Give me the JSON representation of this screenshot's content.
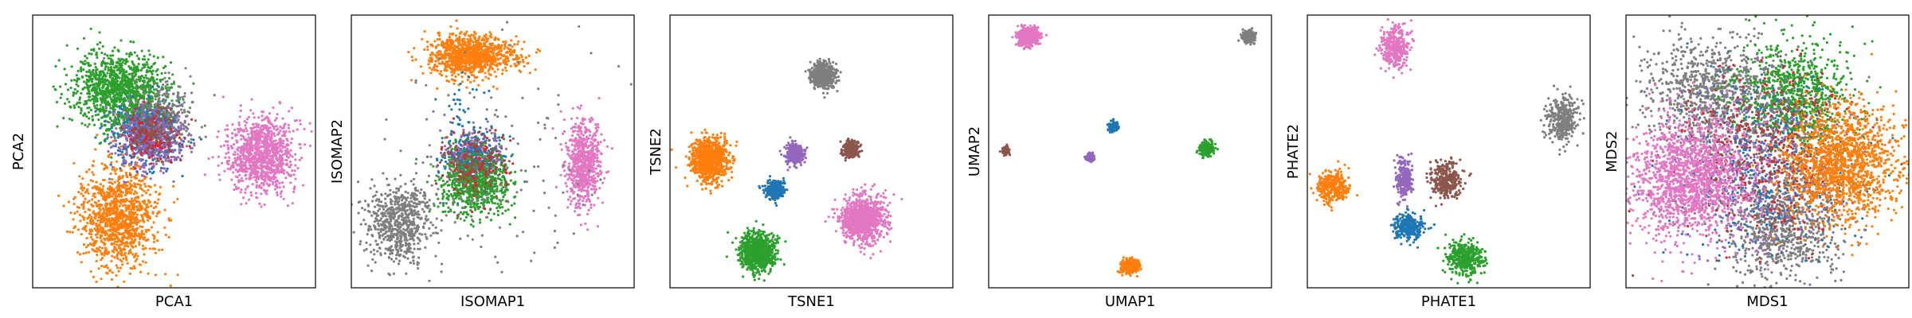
{
  "colors": {
    "blue": "#1f77b4",
    "orange": "#ff7f0e",
    "green": "#2ca02c",
    "red": "#d62728",
    "purple": "#9467bd",
    "brown": "#8c564b",
    "pink": "#e377c2",
    "gray": "#7f7f7f"
  },
  "chart_data": [
    {
      "type": "scatter",
      "xlabel": "PCA1",
      "ylabel": "PCA2",
      "xlim": [
        0,
        100
      ],
      "ylim": [
        0,
        100
      ],
      "grid": false,
      "ticks": false,
      "clusters": [
        {
          "color": "gray",
          "cx": 43,
          "cy": 62,
          "sx": 6,
          "sy": 7,
          "n": 700
        },
        {
          "color": "green",
          "cx": 30,
          "cy": 73,
          "sx": 8,
          "sy": 7,
          "n": 1100
        },
        {
          "color": "blue",
          "cx": 40,
          "cy": 56,
          "sx": 6,
          "sy": 6,
          "n": 400
        },
        {
          "color": "purple",
          "cx": 42,
          "cy": 54,
          "sx": 6,
          "sy": 6,
          "n": 400
        },
        {
          "color": "red",
          "cx": 41,
          "cy": 55,
          "sx": 5,
          "sy": 5,
          "n": 120
        },
        {
          "color": "brown",
          "cx": 42,
          "cy": 58,
          "sx": 5,
          "sy": 5,
          "n": 120
        },
        {
          "color": "orange",
          "cx": 30,
          "cy": 26,
          "sx": 7,
          "sy": 9,
          "n": 1100
        },
        {
          "color": "pink",
          "cx": 81,
          "cy": 49,
          "sx": 6,
          "sy": 7,
          "n": 1000
        }
      ]
    },
    {
      "type": "scatter",
      "xlabel": "ISOMAP1",
      "ylabel": "ISOMAP2",
      "xlim": [
        0,
        100
      ],
      "ylim": [
        0,
        100
      ],
      "grid": false,
      "ticks": false,
      "clusters": [
        {
          "color": "orange",
          "cx": 40,
          "cy": 85,
          "sx": 6,
          "sy": 4,
          "n": 800
        },
        {
          "color": "orange",
          "cx": 52,
          "cy": 85,
          "sx": 6,
          "sy": 3,
          "n": 200
        },
        {
          "color": "gray",
          "cx": 17,
          "cy": 24,
          "sx": 6,
          "sy": 7,
          "n": 650
        },
        {
          "color": "pink",
          "cx": 82,
          "cy": 46,
          "sx": 3,
          "sy": 8,
          "n": 650
        },
        {
          "color": "purple",
          "cx": 42,
          "cy": 48,
          "sx": 5,
          "sy": 4,
          "n": 350
        },
        {
          "color": "blue",
          "cx": 44,
          "cy": 46,
          "sx": 5,
          "sy": 5,
          "n": 250
        },
        {
          "color": "green",
          "cx": 44,
          "cy": 38,
          "sx": 6,
          "sy": 6,
          "n": 700
        },
        {
          "color": "red",
          "cx": 45,
          "cy": 44,
          "sx": 6,
          "sy": 6,
          "n": 120
        },
        {
          "color": "brown",
          "cx": 43,
          "cy": 46,
          "sx": 6,
          "sy": 6,
          "n": 120
        },
        {
          "color": "gray",
          "cx": 50,
          "cy": 45,
          "sx": 22,
          "sy": 22,
          "n": 150
        },
        {
          "color": "blue",
          "cx": 40,
          "cy": 62,
          "sx": 4,
          "sy": 8,
          "n": 60
        }
      ]
    },
    {
      "type": "scatter",
      "xlabel": "TSNE1",
      "ylabel": "TSNE2",
      "xlim": [
        0,
        100
      ],
      "ylim": [
        0,
        100
      ],
      "grid": false,
      "ticks": false,
      "clusters": [
        {
          "color": "orange",
          "cx": 14,
          "cy": 47,
          "sx": 3.3,
          "sy": 3.9,
          "n": 900
        },
        {
          "color": "gray",
          "cx": 54,
          "cy": 78,
          "sx": 2.2,
          "sy": 2.4,
          "n": 500
        },
        {
          "color": "purple",
          "cx": 44,
          "cy": 49,
          "sx": 1.6,
          "sy": 1.9,
          "n": 300
        },
        {
          "color": "brown",
          "cx": 64,
          "cy": 51,
          "sx": 1.4,
          "sy": 1.5,
          "n": 250
        },
        {
          "color": "blue",
          "cx": 37,
          "cy": 36,
          "sx": 1.6,
          "sy": 1.8,
          "n": 300
        },
        {
          "color": "pink",
          "cx": 68,
          "cy": 25,
          "sx": 3.8,
          "sy": 4.2,
          "n": 1000
        },
        {
          "color": "green",
          "cx": 31,
          "cy": 13,
          "sx": 3.0,
          "sy": 3.4,
          "n": 900
        }
      ]
    },
    {
      "type": "scatter",
      "xlabel": "UMAP1",
      "ylabel": "UMAP2",
      "xlim": [
        0,
        100
      ],
      "ylim": [
        0,
        100
      ],
      "grid": false,
      "ticks": false,
      "clusters": [
        {
          "color": "pink",
          "cx": 14,
          "cy": 92,
          "sx": 1.7,
          "sy": 1.5,
          "n": 700
        },
        {
          "color": "gray",
          "cx": 92,
          "cy": 92,
          "sx": 1.0,
          "sy": 1.0,
          "n": 300
        },
        {
          "color": "blue",
          "cx": 44,
          "cy": 59,
          "sx": 0.8,
          "sy": 0.8,
          "n": 200
        },
        {
          "color": "brown",
          "cx": 6,
          "cy": 50,
          "sx": 0.6,
          "sy": 0.6,
          "n": 120
        },
        {
          "color": "purple",
          "cx": 36,
          "cy": 48,
          "sx": 0.7,
          "sy": 0.7,
          "n": 120
        },
        {
          "color": "green",
          "cx": 77,
          "cy": 51,
          "sx": 1.2,
          "sy": 1.2,
          "n": 300
        },
        {
          "color": "orange",
          "cx": 50,
          "cy": 8,
          "sx": 1.6,
          "sy": 1.1,
          "n": 400
        }
      ]
    },
    {
      "type": "scatter",
      "xlabel": "PHATE1",
      "ylabel": "PHATE2",
      "xlim": [
        0,
        100
      ],
      "ylim": [
        0,
        100
      ],
      "grid": false,
      "ticks": false,
      "clusters": [
        {
          "color": "pink",
          "cx": 31,
          "cy": 88,
          "sx": 2.5,
          "sy": 4,
          "n": 350
        },
        {
          "color": "gray",
          "cx": 90,
          "cy": 62,
          "sx": 2.5,
          "sy": 4,
          "n": 350
        },
        {
          "color": "orange",
          "cx": 9,
          "cy": 37,
          "sx": 3,
          "sy": 3,
          "n": 300
        },
        {
          "color": "purple",
          "cx": 34,
          "cy": 40,
          "sx": 1.5,
          "sy": 3.5,
          "n": 250
        },
        {
          "color": "brown",
          "cx": 49,
          "cy": 40,
          "sx": 2.5,
          "sy": 3.5,
          "n": 300
        },
        {
          "color": "blue",
          "cx": 36,
          "cy": 22,
          "sx": 2.5,
          "sy": 2.5,
          "n": 300
        },
        {
          "color": "green",
          "cx": 56,
          "cy": 11,
          "sx": 3,
          "sy": 3,
          "n": 400
        }
      ]
    },
    {
      "type": "scatter",
      "xlabel": "MDS1",
      "ylabel": "MDS2",
      "xlim": [
        0,
        100
      ],
      "ylim": [
        0,
        100
      ],
      "grid": false,
      "ticks": false,
      "clusters": [
        {
          "color": "gray",
          "cx": 30,
          "cy": 72,
          "sx": 12,
          "sy": 10,
          "n": 900
        },
        {
          "color": "green",
          "cx": 60,
          "cy": 70,
          "sx": 10,
          "sy": 10,
          "n": 900
        },
        {
          "color": "gray",
          "cx": 56,
          "cy": 22,
          "sx": 10,
          "sy": 10,
          "n": 800
        },
        {
          "color": "blue",
          "cx": 50,
          "cy": 45,
          "sx": 16,
          "sy": 16,
          "n": 500
        },
        {
          "color": "purple",
          "cx": 48,
          "cy": 48,
          "sx": 15,
          "sy": 15,
          "n": 500
        },
        {
          "color": "red",
          "cx": 50,
          "cy": 48,
          "sx": 15,
          "sy": 15,
          "n": 300
        },
        {
          "color": "brown",
          "cx": 50,
          "cy": 48,
          "sx": 15,
          "sy": 15,
          "n": 300
        },
        {
          "color": "pink",
          "cx": 22,
          "cy": 40,
          "sx": 11,
          "sy": 11,
          "n": 1600
        },
        {
          "color": "orange",
          "cx": 76,
          "cy": 46,
          "sx": 10,
          "sy": 11,
          "n": 1500
        }
      ]
    }
  ]
}
